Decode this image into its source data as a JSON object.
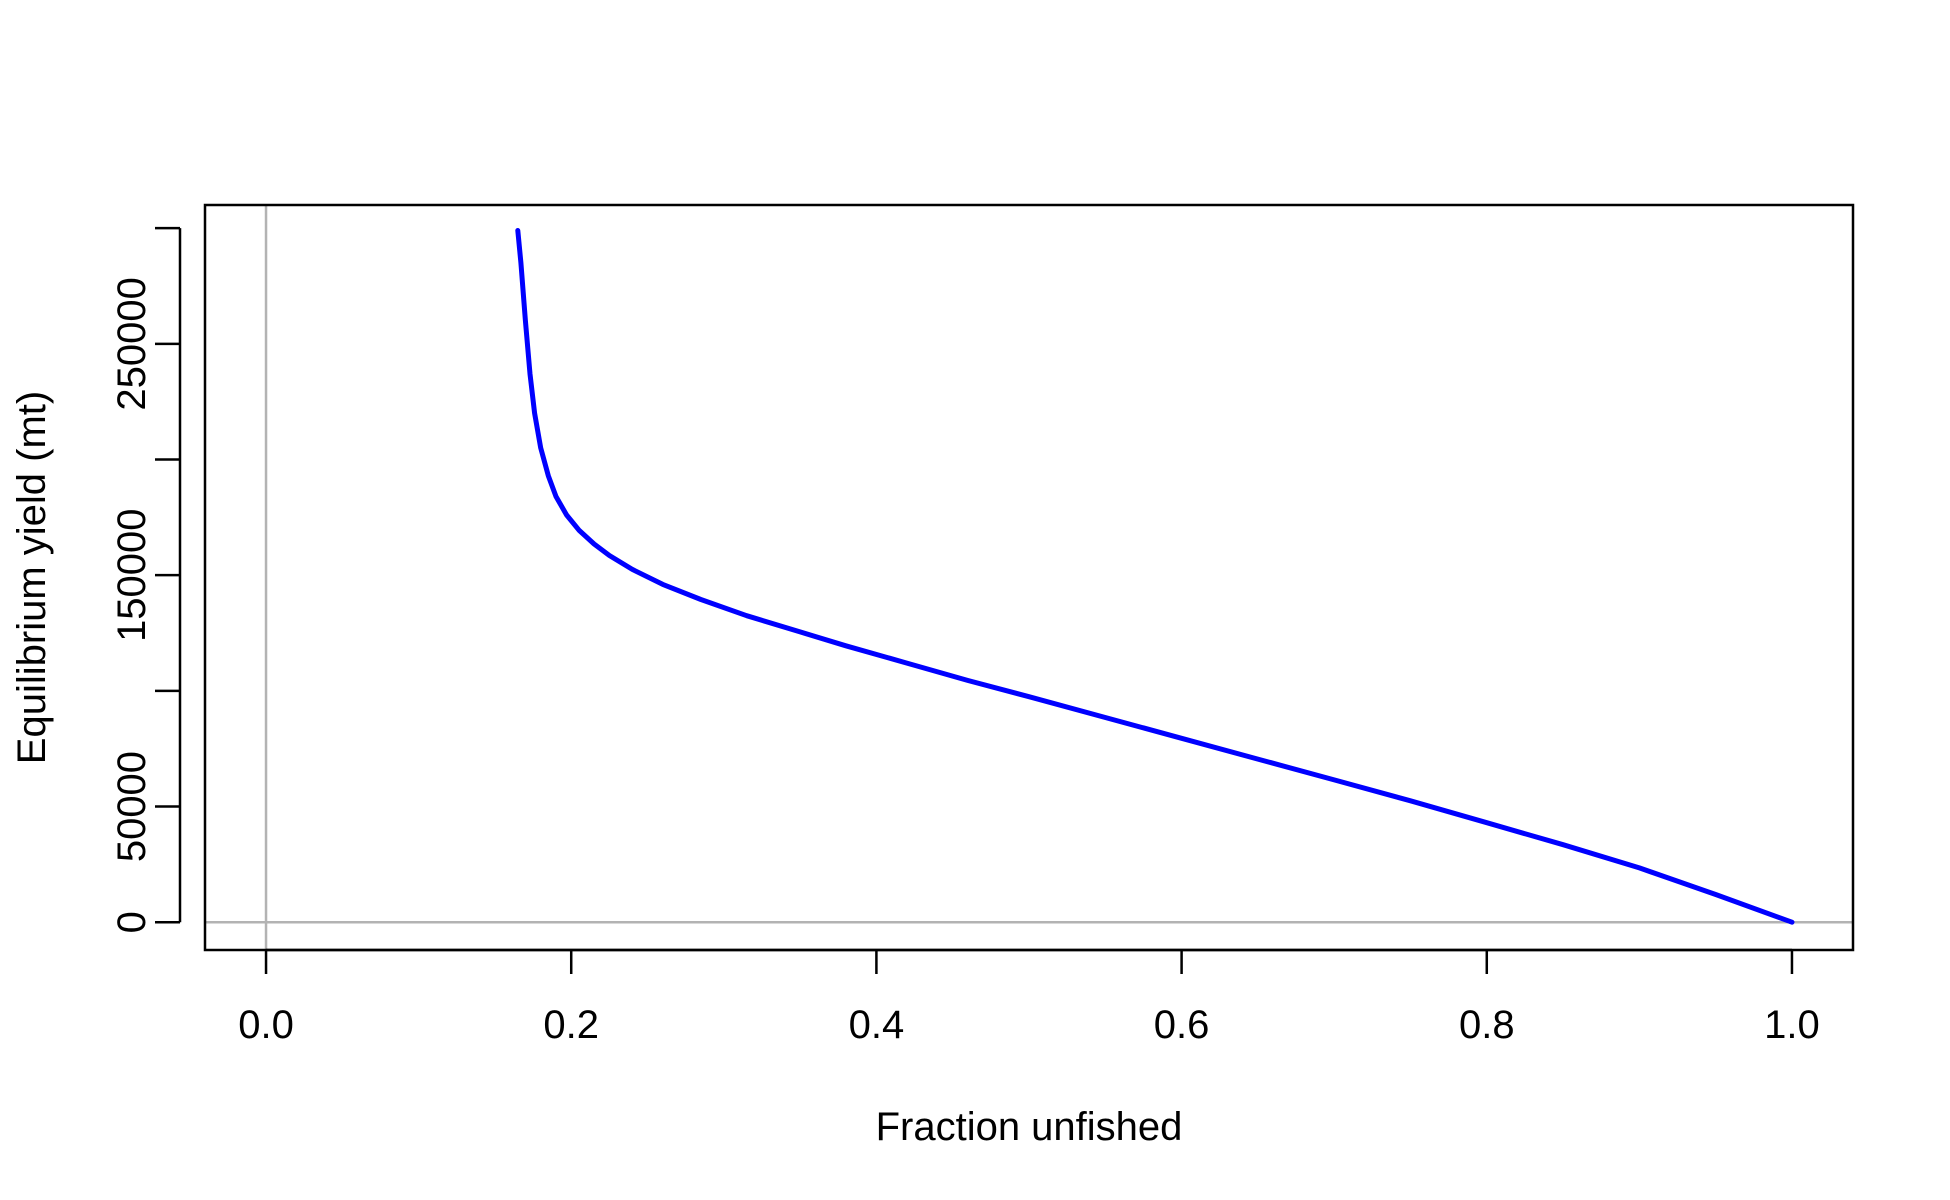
{
  "chart_data": {
    "type": "line",
    "title": "",
    "xlabel": "Fraction unfished",
    "ylabel": "Equilibrium yield (mt)",
    "xlim": [
      -0.04,
      1.04
    ],
    "ylim": [
      -12000,
      310000
    ],
    "x_ticks": [
      0.0,
      0.2,
      0.4,
      0.6,
      0.8,
      1.0
    ],
    "x_tick_labels": [
      "0.0",
      "0.2",
      "0.4",
      "0.6",
      "0.8",
      "1.0"
    ],
    "y_ticks": [
      0,
      50000,
      100000,
      150000,
      200000,
      250000,
      300000
    ],
    "y_tick_labels": [
      "0",
      "50000",
      "",
      "150000",
      "",
      "250000",
      ""
    ],
    "reference_lines": {
      "x": 0,
      "y": 0,
      "color": "#b3b3b3"
    },
    "grid": false,
    "series": [
      {
        "color": "#0000ff",
        "x": [
          0.165,
          0.167,
          0.17,
          0.173,
          0.176,
          0.18,
          0.185,
          0.19,
          0.197,
          0.205,
          0.215,
          0.225,
          0.24,
          0.26,
          0.285,
          0.315,
          0.35,
          0.38,
          0.42,
          0.46,
          0.5,
          0.55,
          0.6,
          0.65,
          0.7,
          0.75,
          0.8,
          0.85,
          0.9,
          0.95,
          1.0
        ],
        "y": [
          299000,
          285000,
          260000,
          237000,
          220000,
          205000,
          193000,
          184000,
          176000,
          169500,
          163500,
          158500,
          152500,
          146000,
          139500,
          132500,
          125500,
          119500,
          112000,
          104500,
          97500,
          88500,
          79500,
          70500,
          61500,
          52500,
          43000,
          33500,
          23500,
          12000,
          0
        ]
      }
    ]
  }
}
